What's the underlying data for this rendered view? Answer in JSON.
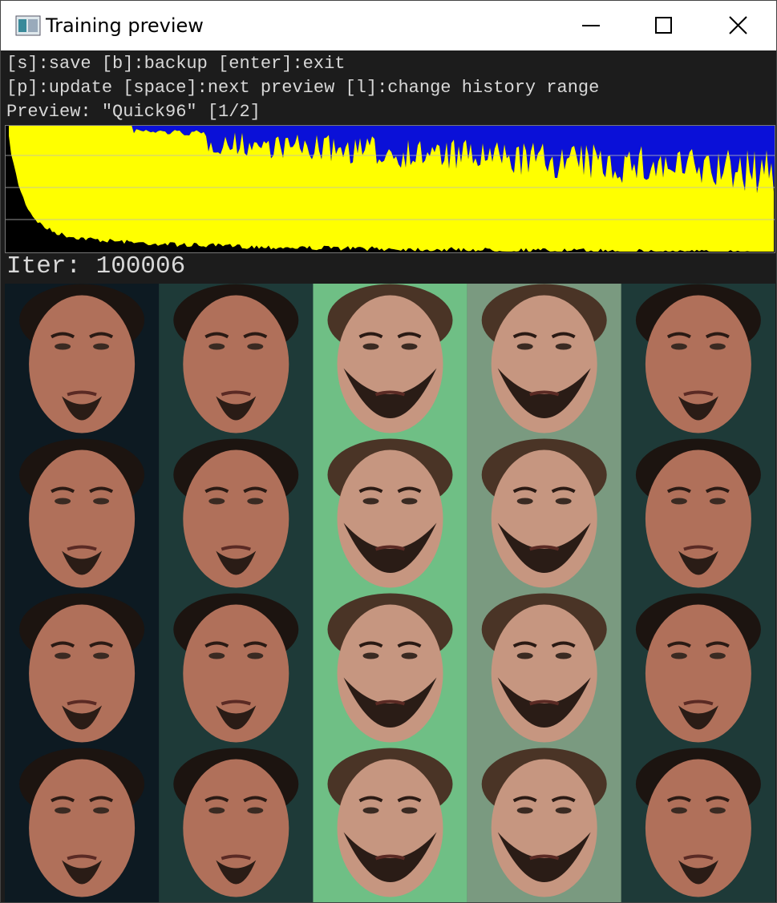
{
  "window": {
    "title": "Training preview"
  },
  "help_lines": [
    "[s]:save [b]:backup [enter]:exit",
    "[p]:update [space]:next preview [l]:change history range",
    "Preview: \"Quick96\" [1/2]"
  ],
  "iter": "Iter: 100006"
}
